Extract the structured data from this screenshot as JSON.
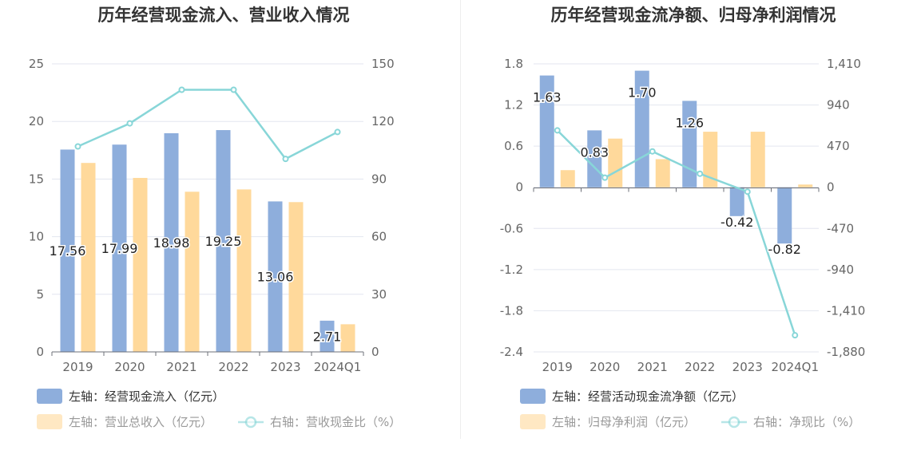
{
  "chart_data": [
    {
      "type": "bar",
      "title": "历年经营现金流入、营业收入情况",
      "categories": [
        "2019",
        "2020",
        "2021",
        "2022",
        "2023",
        "2024Q1"
      ],
      "left_axis": {
        "ticks": [
          "0",
          "5",
          "10",
          "15",
          "20",
          "25"
        ],
        "ylim": [
          0,
          25
        ]
      },
      "right_axis": {
        "ticks": [
          "0",
          "30",
          "60",
          "90",
          "120",
          "150"
        ],
        "ylim": [
          0,
          150
        ]
      },
      "series": [
        {
          "name": "左轴：经营现金流入（亿元）",
          "kind": "bar",
          "axis": "left",
          "color": "#8eaedc",
          "values": [
            17.56,
            17.99,
            18.98,
            19.25,
            13.06,
            2.71
          ],
          "labels": [
            "17.56",
            "17.99",
            "18.98",
            "19.25",
            "13.06",
            "2.71"
          ]
        },
        {
          "name": "左轴：营业总收入（亿元）",
          "kind": "bar",
          "axis": "left",
          "color": "#ffd99b",
          "values": [
            16.4,
            15.1,
            13.9,
            14.1,
            13.0,
            2.4
          ]
        },
        {
          "name": "右轴：营收现金比（%）",
          "kind": "line",
          "axis": "right",
          "color": "#88d6d8",
          "values": [
            107,
            119,
            136.5,
            136.5,
            100.5,
            114.5
          ]
        }
      ]
    },
    {
      "type": "bar",
      "title": "历年经营现金流净额、归母净利润情况",
      "categories": [
        "2019",
        "2020",
        "2021",
        "2022",
        "2023",
        "2024Q1"
      ],
      "left_axis": {
        "ticks": [
          "-2.4",
          "-1.8",
          "-1.2",
          "-0.6",
          "0",
          "0.6",
          "1.2",
          "1.8"
        ],
        "ylim": [
          -2.4,
          1.8
        ]
      },
      "right_axis": {
        "ticks": [
          "-1,880",
          "-1,410",
          "-940",
          "-470",
          "0",
          "470",
          "940",
          "1,410"
        ],
        "ylim": [
          -1880,
          1410
        ]
      },
      "series": [
        {
          "name": "左轴：经营活动现金流净额（亿元）",
          "kind": "bar",
          "axis": "left",
          "color": "#8eaedc",
          "values": [
            1.63,
            0.83,
            1.7,
            1.26,
            -0.42,
            -0.82
          ],
          "labels": [
            "1.63",
            "0.83",
            "1.70",
            "1.26",
            "-0.42",
            "-0.82"
          ]
        },
        {
          "name": "左轴：归母净利润（亿元）",
          "kind": "bar",
          "axis": "left",
          "color": "#ffd99b",
          "values": [
            0.25,
            0.71,
            0.41,
            0.81,
            0.81,
            0.04
          ]
        },
        {
          "name": "右轴：净现比（%）",
          "kind": "line",
          "axis": "right",
          "color": "#88d6d8",
          "values": [
            650,
            110,
            410,
            155,
            -50,
            -1690
          ]
        }
      ]
    }
  ]
}
